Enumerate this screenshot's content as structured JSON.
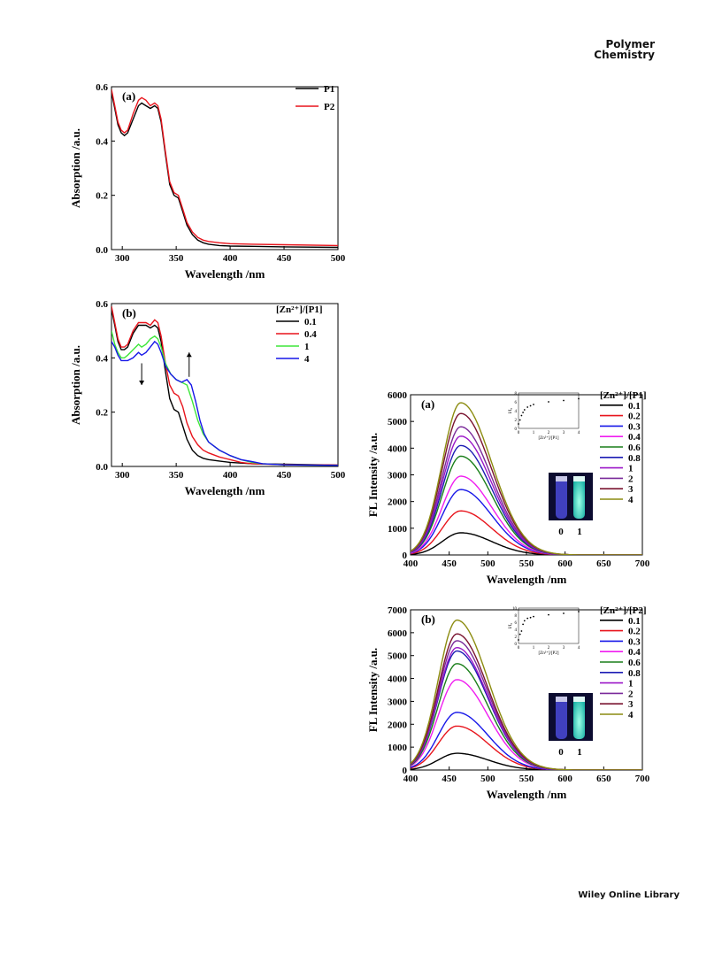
{
  "page": {
    "journal_line1": "Polymer",
    "journal_line2": "Chemistry",
    "footer": "Wiley Online Library"
  },
  "colors": {
    "black": "#000000",
    "red": "#e8141c",
    "green": "#3ee63a",
    "blue": "#1717e8",
    "magenta": "#f01ef0",
    "darkgreen": "#1a7f1a",
    "navy": "#1c1cb4",
    "purple": "#9b17c8",
    "violet": "#7a2a9a",
    "maroon": "#7a1430",
    "olive": "#8c8c10"
  },
  "chart_data": [
    {
      "id": "abs_a",
      "type": "line",
      "panel_label": "(a)",
      "xlabel": "Wavelength /nm",
      "ylabel": "Absorption /a.u.",
      "xlim": [
        290,
        500
      ],
      "ylim": [
        0,
        0.6
      ],
      "xticks": [
        300,
        350,
        400,
        450,
        500
      ],
      "yticks": [
        0.0,
        0.2,
        0.4,
        0.6
      ],
      "ytick_labels": [
        "0.0",
        "0.2",
        "0.4",
        "0.6"
      ],
      "legend_title": "",
      "legend_position": "top-right",
      "series": [
        {
          "name": "P1",
          "color": "#000000",
          "x": [
            290,
            293,
            296,
            299,
            302,
            305,
            310,
            315,
            318,
            322,
            326,
            330,
            333,
            336,
            340,
            344,
            348,
            352,
            356,
            360,
            365,
            370,
            375,
            380,
            390,
            400,
            420,
            450,
            500
          ],
          "y": [
            0.58,
            0.52,
            0.46,
            0.43,
            0.42,
            0.43,
            0.48,
            0.53,
            0.54,
            0.53,
            0.52,
            0.53,
            0.52,
            0.47,
            0.35,
            0.24,
            0.2,
            0.19,
            0.14,
            0.09,
            0.055,
            0.035,
            0.025,
            0.02,
            0.015,
            0.013,
            0.012,
            0.01,
            0.008
          ]
        },
        {
          "name": "P2",
          "color": "#e8141c",
          "x": [
            290,
            293,
            296,
            299,
            302,
            305,
            310,
            315,
            318,
            322,
            326,
            330,
            333,
            336,
            340,
            344,
            348,
            352,
            356,
            360,
            365,
            370,
            375,
            380,
            390,
            400,
            420,
            450,
            500
          ],
          "y": [
            0.59,
            0.53,
            0.47,
            0.44,
            0.43,
            0.44,
            0.5,
            0.55,
            0.56,
            0.55,
            0.53,
            0.54,
            0.53,
            0.48,
            0.36,
            0.25,
            0.21,
            0.2,
            0.15,
            0.1,
            0.065,
            0.045,
            0.035,
            0.03,
            0.025,
            0.022,
            0.02,
            0.018,
            0.015
          ]
        }
      ]
    },
    {
      "id": "abs_b",
      "type": "line",
      "panel_label": "(b)",
      "xlabel": "Wavelength /nm",
      "ylabel": "Absorption /a.u.",
      "xlim": [
        290,
        500
      ],
      "ylim": [
        0,
        0.6
      ],
      "xticks": [
        300,
        350,
        400,
        450,
        500
      ],
      "yticks": [
        0.0,
        0.2,
        0.4,
        0.6
      ],
      "ytick_labels": [
        "0.0",
        "0.2",
        "0.4",
        "0.6"
      ],
      "legend_title": "[Zn²⁺]/[P1]",
      "legend_position": "top-right",
      "arrows": [
        {
          "x": 318,
          "dir": "down"
        },
        {
          "x": 362,
          "dir": "up"
        }
      ],
      "series": [
        {
          "name": "0.1",
          "color": "#000000",
          "x": [
            290,
            293,
            296,
            299,
            302,
            305,
            310,
            315,
            318,
            322,
            326,
            330,
            333,
            336,
            340,
            344,
            348,
            352,
            356,
            360,
            365,
            370,
            375,
            380,
            390,
            400,
            420,
            450,
            500
          ],
          "y": [
            0.58,
            0.52,
            0.46,
            0.43,
            0.43,
            0.44,
            0.49,
            0.52,
            0.52,
            0.52,
            0.51,
            0.52,
            0.51,
            0.46,
            0.35,
            0.25,
            0.21,
            0.2,
            0.15,
            0.1,
            0.06,
            0.04,
            0.03,
            0.025,
            0.02,
            0.015,
            0.01,
            0.008,
            0.005
          ]
        },
        {
          "name": "0.4",
          "color": "#e8141c",
          "x": [
            290,
            293,
            296,
            299,
            302,
            305,
            310,
            315,
            318,
            322,
            326,
            330,
            333,
            336,
            340,
            344,
            348,
            352,
            356,
            360,
            365,
            370,
            375,
            380,
            390,
            400,
            410,
            420,
            450,
            500
          ],
          "y": [
            0.59,
            0.53,
            0.47,
            0.44,
            0.44,
            0.45,
            0.5,
            0.53,
            0.53,
            0.53,
            0.52,
            0.54,
            0.53,
            0.48,
            0.38,
            0.3,
            0.27,
            0.26,
            0.22,
            0.16,
            0.11,
            0.08,
            0.06,
            0.05,
            0.035,
            0.025,
            0.015,
            0.01,
            0.007,
            0.005
          ]
        },
        {
          "name": "1",
          "color": "#3ee63a",
          "x": [
            290,
            293,
            296,
            299,
            302,
            305,
            310,
            315,
            318,
            322,
            326,
            330,
            333,
            336,
            340,
            345,
            350,
            355,
            360,
            365,
            370,
            375,
            380,
            390,
            400,
            410,
            420,
            430,
            450,
            500
          ],
          "y": [
            0.5,
            0.45,
            0.42,
            0.4,
            0.4,
            0.41,
            0.43,
            0.45,
            0.44,
            0.45,
            0.47,
            0.48,
            0.47,
            0.44,
            0.38,
            0.34,
            0.32,
            0.31,
            0.3,
            0.24,
            0.17,
            0.12,
            0.09,
            0.06,
            0.04,
            0.025,
            0.015,
            0.01,
            0.006,
            0.004
          ]
        },
        {
          "name": "4",
          "color": "#1717e8",
          "x": [
            290,
            293,
            296,
            299,
            302,
            305,
            310,
            315,
            318,
            322,
            326,
            330,
            333,
            336,
            340,
            345,
            350,
            355,
            360,
            364,
            368,
            372,
            376,
            380,
            390,
            400,
            410,
            420,
            430,
            450,
            500
          ],
          "y": [
            0.46,
            0.44,
            0.41,
            0.39,
            0.39,
            0.39,
            0.4,
            0.42,
            0.41,
            0.42,
            0.44,
            0.46,
            0.45,
            0.42,
            0.37,
            0.34,
            0.32,
            0.31,
            0.32,
            0.3,
            0.24,
            0.17,
            0.12,
            0.09,
            0.06,
            0.04,
            0.025,
            0.018,
            0.01,
            0.006,
            0.004
          ]
        }
      ]
    },
    {
      "id": "fl_a",
      "type": "line",
      "panel_label": "(a)",
      "xlabel": "Wavelength /nm",
      "ylabel": "FL Intensity /a.u.",
      "xlim": [
        400,
        700
      ],
      "ylim": [
        0,
        6000
      ],
      "xticks": [
        400,
        450,
        500,
        550,
        600,
        650,
        700
      ],
      "yticks": [
        0,
        1000,
        2000,
        3000,
        4000,
        5000,
        6000
      ],
      "legend_title": "[Zn²⁺]/[P1]",
      "legend_position": "right",
      "peak_nm": 465,
      "vial_labels": [
        "0",
        "1"
      ],
      "series": [
        {
          "name": "0.1",
          "color": "#000000",
          "peak": 830
        },
        {
          "name": "0.2",
          "color": "#e8141c",
          "peak": 1650
        },
        {
          "name": "0.3",
          "color": "#1717e8",
          "peak": 2450
        },
        {
          "name": "0.4",
          "color": "#f01ef0",
          "peak": 2950
        },
        {
          "name": "0.6",
          "color": "#1a7f1a",
          "peak": 3700
        },
        {
          "name": "0.8",
          "color": "#1c1cb4",
          "peak": 4100
        },
        {
          "name": "1",
          "color": "#9b17c8",
          "peak": 4450
        },
        {
          "name": "2",
          "color": "#7a2a9a",
          "peak": 4800
        },
        {
          "name": "3",
          "color": "#7a1430",
          "peak": 5300
        },
        {
          "name": "4",
          "color": "#8c8c10",
          "peak": 5700
        }
      ],
      "inset": {
        "xlabel": "[Zn²⁺]/[P1]",
        "ylabel": "I/I₀",
        "xlim": [
          0,
          4
        ],
        "ylim": [
          0,
          8
        ],
        "xticks": [
          0,
          1,
          2,
          3,
          4
        ],
        "yticks": [
          0,
          2,
          4,
          6,
          8
        ],
        "x": [
          0,
          0.1,
          0.2,
          0.3,
          0.4,
          0.6,
          0.8,
          1,
          2,
          3,
          4
        ],
        "y": [
          1,
          1.9,
          2.9,
          3.6,
          4.2,
          4.8,
          5.1,
          5.4,
          6.0,
          6.3,
          6.7
        ]
      }
    },
    {
      "id": "fl_b",
      "type": "line",
      "panel_label": "(b)",
      "xlabel": "Wavelength /nm",
      "ylabel": "FL Intensity /a.u.",
      "xlim": [
        400,
        700
      ],
      "ylim": [
        0,
        7000
      ],
      "xticks": [
        400,
        450,
        500,
        550,
        600,
        650,
        700
      ],
      "yticks": [
        0,
        1000,
        2000,
        3000,
        4000,
        5000,
        6000,
        7000
      ],
      "legend_title": "[Zn²⁺]/[P2]",
      "legend_position": "right",
      "peak_nm": 460,
      "vial_labels": [
        "0",
        "1"
      ],
      "series": [
        {
          "name": "0.1",
          "color": "#000000",
          "peak": 730
        },
        {
          "name": "0.2",
          "color": "#e8141c",
          "peak": 1920
        },
        {
          "name": "0.3",
          "color": "#1717e8",
          "peak": 2520
        },
        {
          "name": "0.4",
          "color": "#f01ef0",
          "peak": 3950
        },
        {
          "name": "0.6",
          "color": "#1a7f1a",
          "peak": 4650
        },
        {
          "name": "0.8",
          "color": "#1c1cb4",
          "peak": 5200
        },
        {
          "name": "1",
          "color": "#9b17c8",
          "peak": 5350
        },
        {
          "name": "2",
          "color": "#7a2a9a",
          "peak": 5650
        },
        {
          "name": "3",
          "color": "#7a1430",
          "peak": 5950
        },
        {
          "name": "4",
          "color": "#8c8c10",
          "peak": 6550
        }
      ],
      "inset": {
        "xlabel": "[Zn²⁺]/[P2]",
        "ylabel": "I/I₀",
        "xlim": [
          0,
          4
        ],
        "ylim": [
          0,
          10
        ],
        "xticks": [
          0,
          1,
          2,
          3,
          4
        ],
        "yticks": [
          0,
          2,
          4,
          6,
          8,
          10
        ],
        "x": [
          0,
          0.1,
          0.2,
          0.3,
          0.4,
          0.6,
          0.8,
          1,
          2,
          3,
          4
        ],
        "y": [
          1,
          2.6,
          3.5,
          5.4,
          6.4,
          7.1,
          7.3,
          7.6,
          8.1,
          8.5,
          9.0
        ]
      }
    }
  ]
}
